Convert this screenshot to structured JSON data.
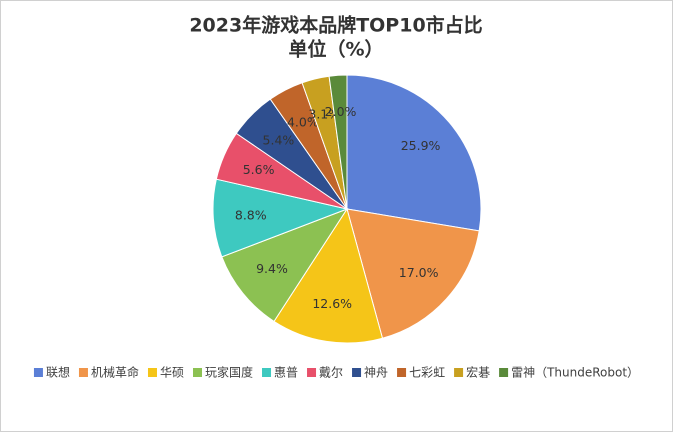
{
  "chart_data": {
    "type": "pie",
    "title": "2023年游戏本品牌TOP10市占比",
    "subtitle": "单位（%）",
    "categories": [
      "联想",
      "机械革命",
      "华硕",
      "玩家国度",
      "惠普",
      "戴尔",
      "神舟",
      "七彩虹",
      "宏碁",
      "雷神（ThundeRobot）"
    ],
    "values": [
      25.9,
      17.0,
      12.6,
      9.4,
      8.8,
      5.6,
      5.4,
      4.0,
      3.1,
      2.0
    ],
    "value_labels": [
      "25.9%",
      "17.0%",
      "12.6%",
      "9.4%",
      "8.8%",
      "5.6%",
      "5.4%",
      "4.0%",
      "3.1%",
      "2.0%"
    ],
    "colors": [
      "#5b7fd6",
      "#f0954a",
      "#f5c518",
      "#8cc152",
      "#3ec9c0",
      "#e8506a",
      "#2f4f8f",
      "#c0652a",
      "#c8a020",
      "#5a8a3a"
    ],
    "legend": "bottom"
  }
}
